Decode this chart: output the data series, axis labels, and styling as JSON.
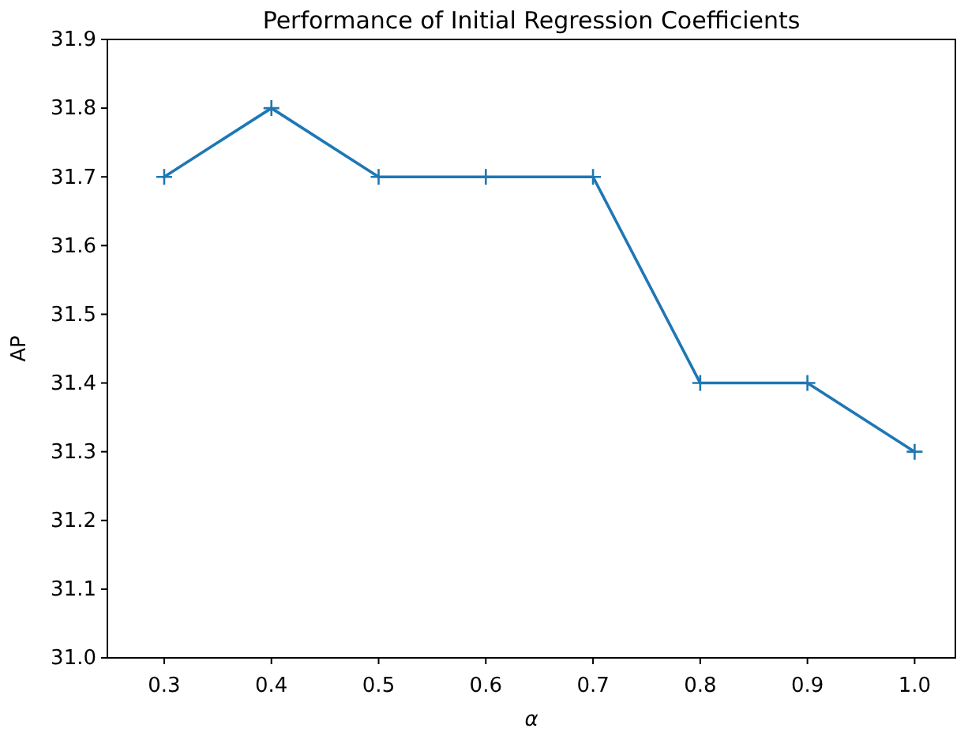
{
  "chart_data": {
    "type": "line",
    "title": "Performance of Initial Regression Coefficients",
    "xlabel": "α",
    "ylabel": "AP",
    "x": [
      0.3,
      0.4,
      0.5,
      0.6,
      0.7,
      0.8,
      0.9,
      1.0
    ],
    "series": [
      {
        "color": "#1f77b4",
        "values": [
          31.7,
          31.8,
          31.7,
          31.7,
          31.7,
          31.4,
          31.4,
          31.3
        ]
      }
    ],
    "xlim": [
      0.247,
      1.038
    ],
    "xticks": [
      0.3,
      0.4,
      0.5,
      0.6,
      0.7,
      0.8,
      0.9,
      {
        "value": 1,
        "label": "1.0"
      }
    ],
    "ylim": [
      31.0,
      31.9
    ],
    "yticks": [
      {
        "value": 31,
        "label": "31.0"
      },
      31.1,
      31.2,
      31.3,
      31.4,
      31.5,
      31.6,
      31.7,
      31.8,
      31.9
    ],
    "marker": "cross",
    "line_style": "solid"
  }
}
